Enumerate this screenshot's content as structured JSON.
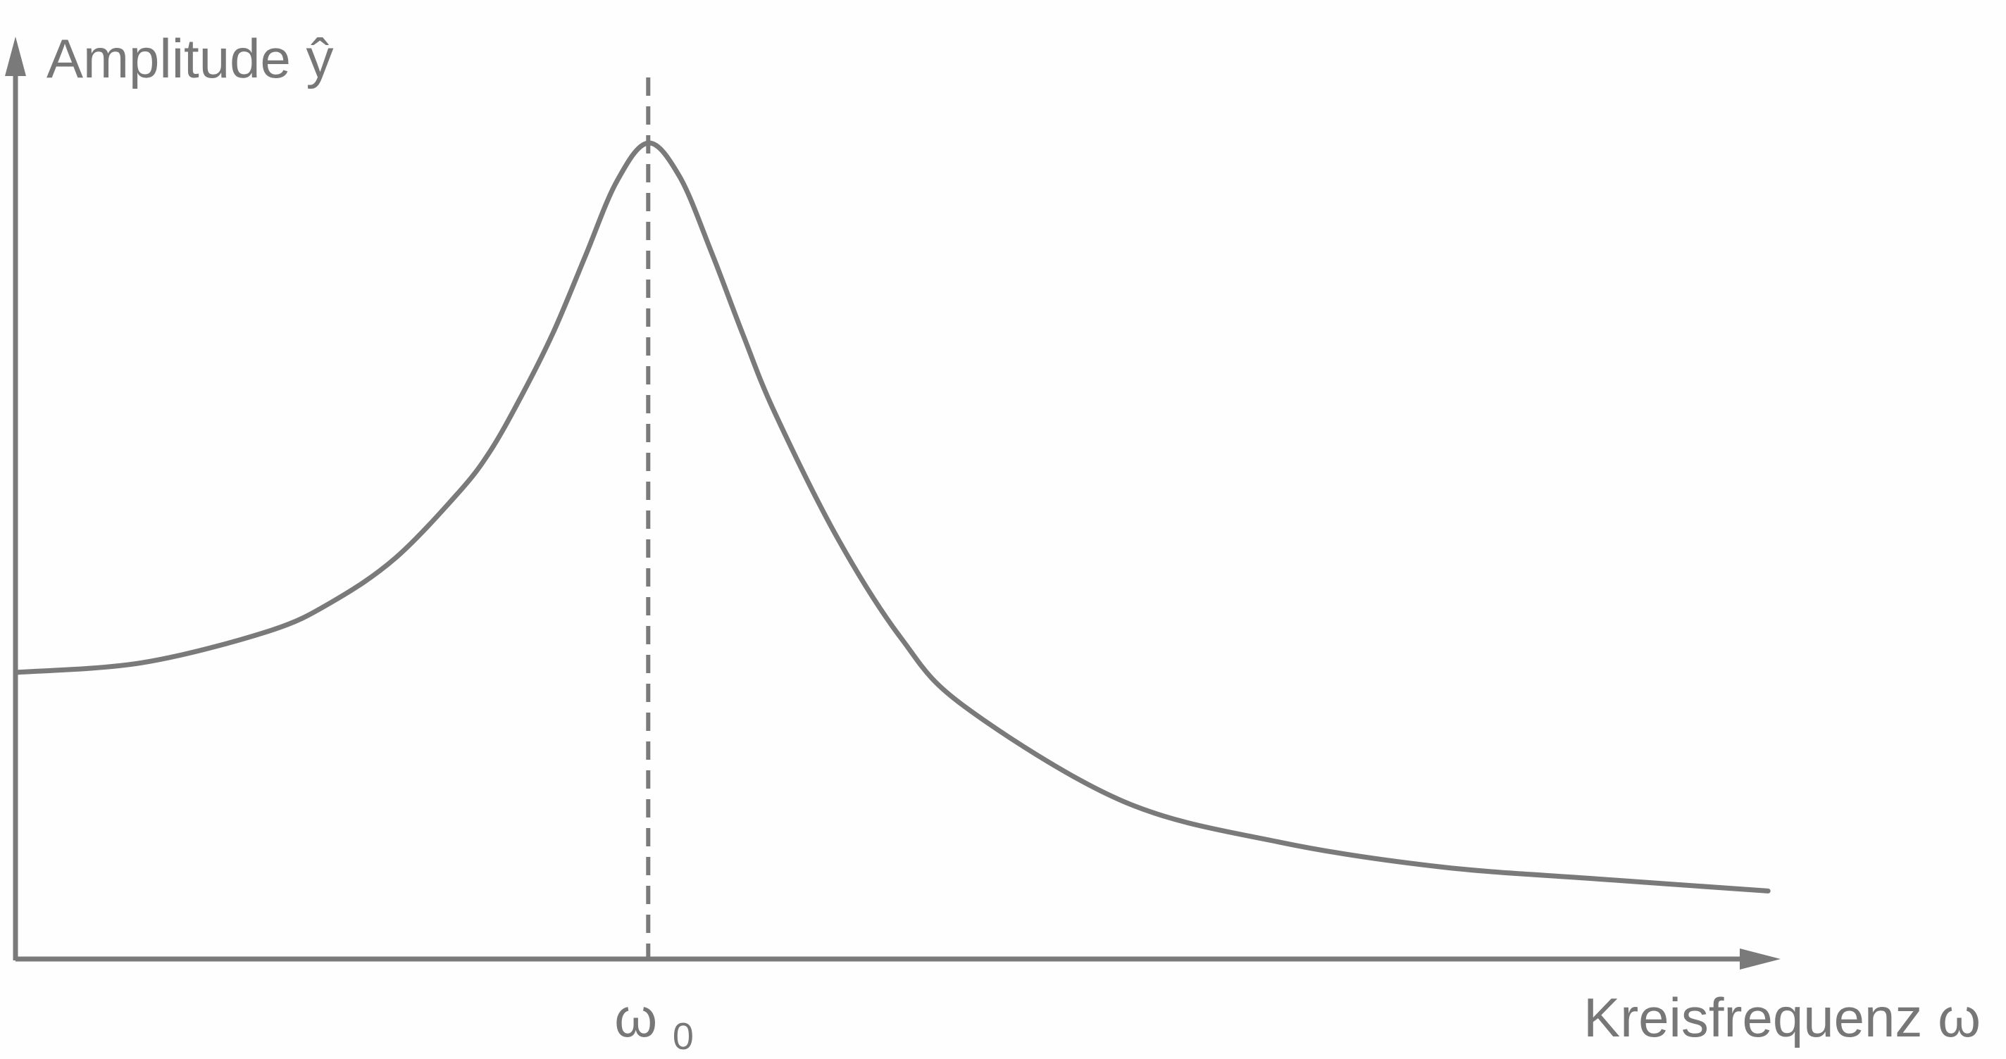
{
  "chart_data": {
    "type": "line",
    "title": "",
    "ylabel": "Amplitude ŷ",
    "xlabel": "Kreisfrequenz ω",
    "marker": {
      "label_base": "ω",
      "label_sub": "0",
      "x": 1.0
    },
    "series": [
      {
        "x": [
          0,
          0.2,
          0.4,
          0.5,
          0.6,
          0.7,
          0.75,
          0.8,
          0.85,
          0.9,
          0.95,
          1.0,
          1.05,
          1.1,
          1.15,
          1.2,
          1.3,
          1.4,
          1.5,
          1.75,
          2.0,
          2.25,
          2.5,
          2.77
        ],
        "y": [
          1.0,
          1.04,
          1.17,
          1.29,
          1.47,
          1.74,
          1.91,
          2.14,
          2.4,
          2.71,
          3.02,
          3.18,
          3.04,
          2.73,
          2.39,
          2.07,
          1.55,
          1.14,
          0.86,
          0.47,
          0.3,
          0.2,
          0.15,
          0.1
        ]
      }
    ],
    "xlim": [
      0,
      2.87
    ],
    "ylim": [
      -0.18,
      3.56
    ],
    "grid": false,
    "legend": "none",
    "color": "#7a7a7a"
  }
}
